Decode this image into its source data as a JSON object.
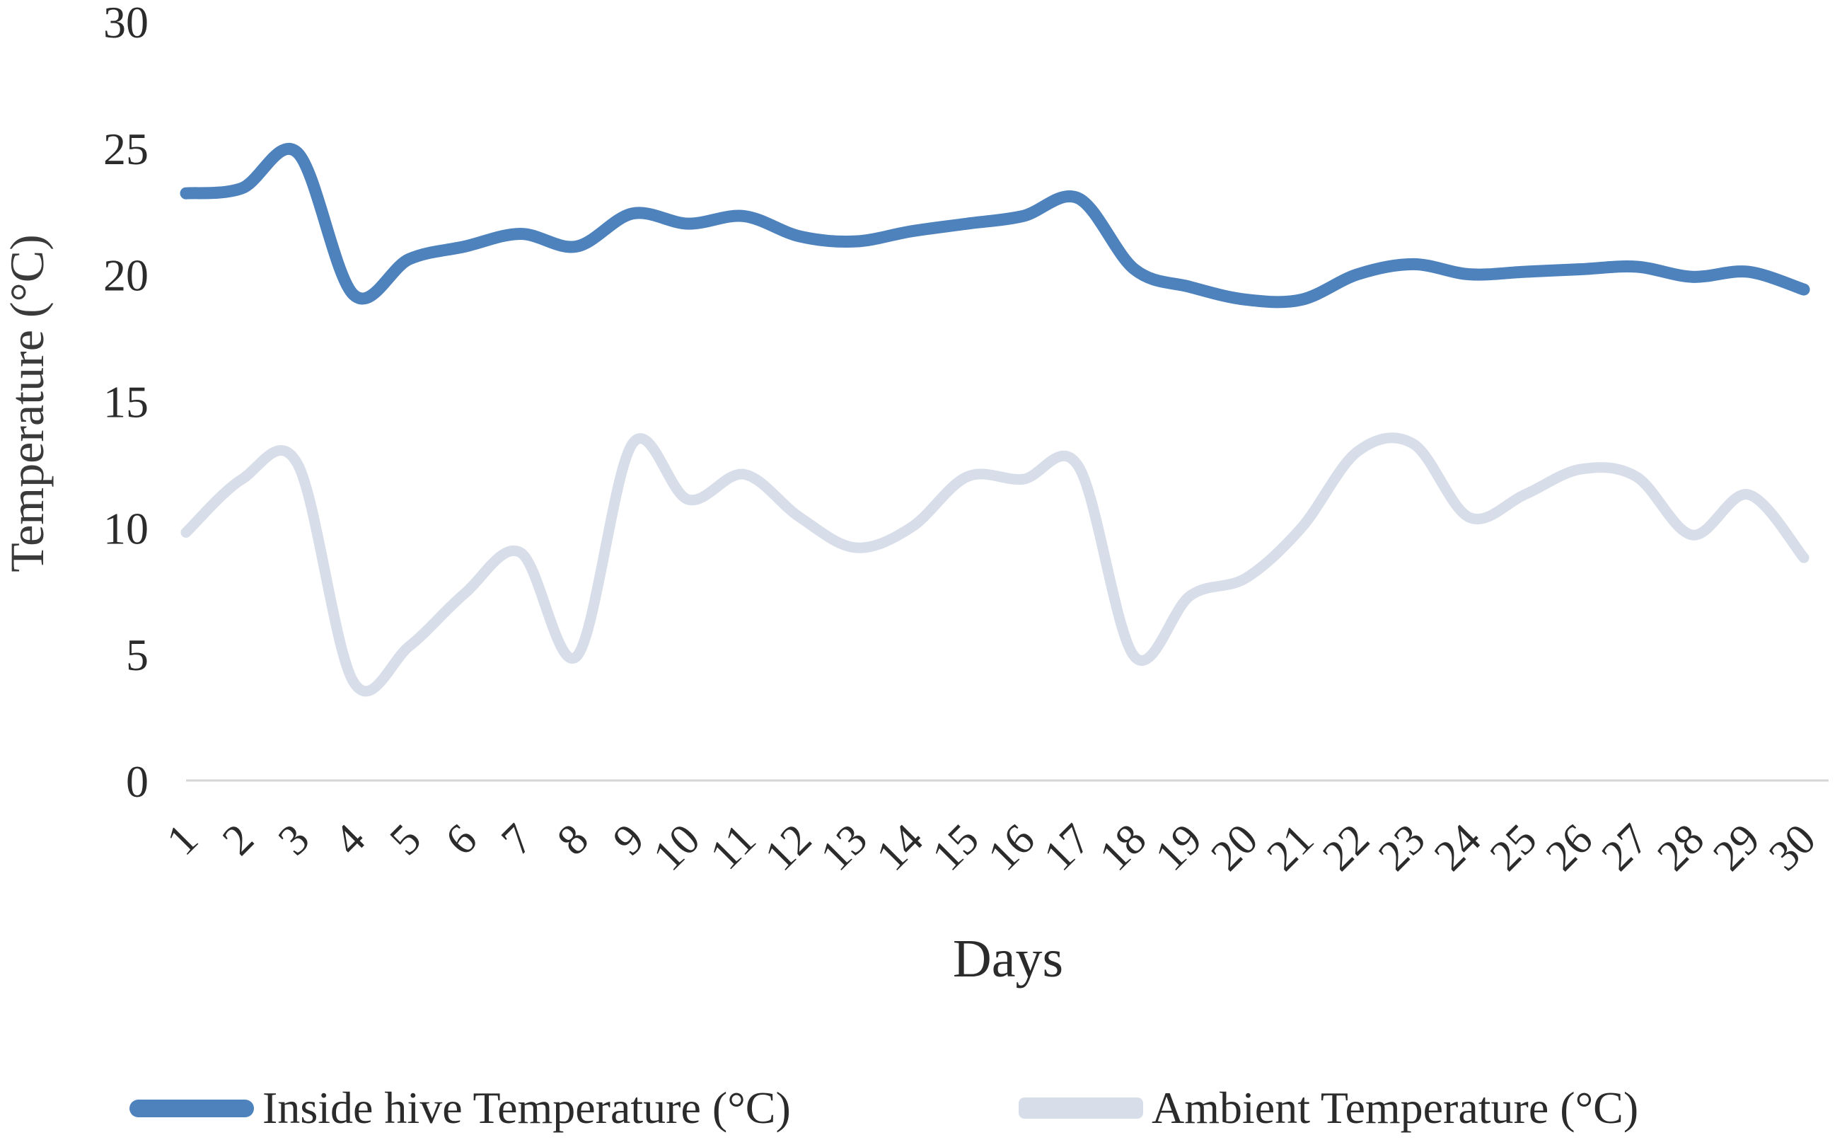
{
  "chart_data": {
    "type": "line",
    "title": "",
    "xlabel": "Days",
    "ylabel": "Temperature (°C)",
    "x": [
      1,
      2,
      3,
      4,
      5,
      6,
      7,
      8,
      9,
      10,
      11,
      12,
      13,
      14,
      15,
      16,
      17,
      18,
      19,
      20,
      21,
      22,
      23,
      24,
      25,
      26,
      27,
      28,
      29,
      30
    ],
    "ylim": [
      0,
      30
    ],
    "yticks": [
      0,
      5,
      10,
      15,
      20,
      25,
      30
    ],
    "grid": "baseline-only",
    "line_style": "smooth",
    "legend_position": "bottom",
    "series": [
      {
        "key": "inside-hive",
        "name": "Inside hive Temperature (°C)",
        "color": "#4e82bd",
        "stroke_width": 17,
        "values": [
          23.2,
          23.4,
          24.8,
          19.2,
          20.6,
          21.1,
          21.6,
          21.1,
          22.4,
          22.0,
          22.3,
          21.5,
          21.3,
          21.7,
          22.0,
          22.3,
          23.0,
          20.2,
          19.5,
          19.0,
          19.0,
          20.0,
          20.4,
          20.0,
          20.1,
          20.2,
          20.3,
          19.9,
          20.1,
          19.4
        ]
      },
      {
        "key": "ambient",
        "name": "Ambient Temperature (°C)",
        "color": "#d8dee9",
        "stroke_width": 15,
        "values": [
          9.8,
          11.9,
          12.5,
          3.9,
          5.3,
          7.4,
          9.0,
          4.9,
          13.3,
          11.1,
          12.1,
          10.4,
          9.2,
          10.0,
          12.0,
          11.9,
          12.4,
          4.9,
          7.3,
          8.0,
          10.0,
          13.0,
          13.3,
          10.4,
          11.3,
          12.3,
          12.0,
          9.7,
          11.3,
          8.8
        ]
      }
    ]
  },
  "colors": {
    "baseline": "#d6d6d6",
    "tick_text": "#2b2b2b"
  }
}
